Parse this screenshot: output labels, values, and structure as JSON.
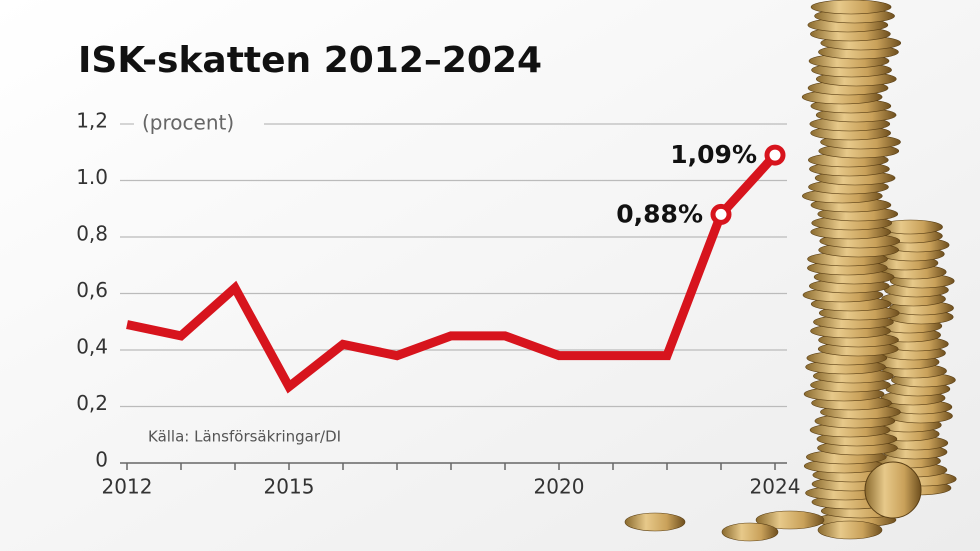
{
  "chart_data": {
    "type": "line",
    "title": "ISK-skatten 2012–2024",
    "y_label": "(procent)",
    "source": "Källa: Länsförsäkringar/DI",
    "x": [
      2012,
      2013,
      2014,
      2015,
      2016,
      2017,
      2018,
      2019,
      2020,
      2021,
      2022,
      2023,
      2024
    ],
    "series": [
      {
        "name": "ISK-skatt",
        "color": "#d7141d",
        "values": [
          0.49,
          0.45,
          0.62,
          0.27,
          0.42,
          0.38,
          0.45,
          0.45,
          0.38,
          0.38,
          0.38,
          0.88,
          1.09
        ],
        "value_labels": [
          null,
          null,
          null,
          null,
          null,
          null,
          null,
          null,
          null,
          null,
          null,
          "0,88%",
          "1,09%"
        ]
      }
    ],
    "xlim": [
      2012,
      2024
    ],
    "xticks": [
      2012,
      2015,
      2020,
      2024
    ],
    "ylim": [
      0,
      1.2
    ],
    "yticks": [
      0,
      {
        "value": 0.2,
        "label": "0,2"
      },
      {
        "value": 0.4,
        "label": "0,4"
      },
      {
        "value": 0.6,
        "label": "0,6"
      },
      {
        "value": 0.8,
        "label": "0,8"
      },
      {
        "value": 1.0,
        "label": "1.0"
      },
      {
        "value": 1.2,
        "label": "1,2"
      }
    ],
    "grid": true
  }
}
